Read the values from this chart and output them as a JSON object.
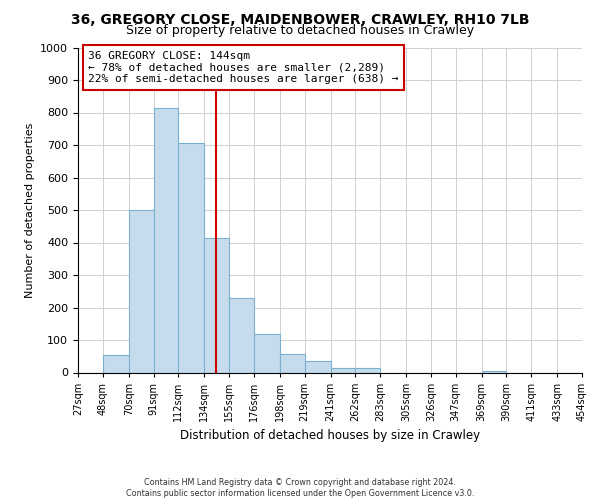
{
  "title": "36, GREGORY CLOSE, MAIDENBOWER, CRAWLEY, RH10 7LB",
  "subtitle": "Size of property relative to detached houses in Crawley",
  "xlabel": "Distribution of detached houses by size in Crawley",
  "ylabel": "Number of detached properties",
  "bin_edges": [
    27,
    48,
    70,
    91,
    112,
    134,
    155,
    176,
    198,
    219,
    241,
    262,
    283,
    305,
    326,
    347,
    369,
    390,
    411,
    433,
    454
  ],
  "bar_heights": [
    0,
    55,
    500,
    815,
    705,
    415,
    228,
    118,
    57,
    35,
    13,
    13,
    0,
    0,
    0,
    0,
    5,
    0,
    0,
    0
  ],
  "bar_color": "#c6dcec",
  "bar_edge_color": "#7ab0d0",
  "vline_x": 144,
  "vline_color": "#cc0000",
  "annotation_line1": "36 GREGORY CLOSE: 144sqm",
  "annotation_line2": "← 78% of detached houses are smaller (2,289)",
  "annotation_line3": "22% of semi-detached houses are larger (638) →",
  "annotation_box_color": "#cc0000",
  "footer_line1": "Contains HM Land Registry data © Crown copyright and database right 2024.",
  "footer_line2": "Contains public sector information licensed under the Open Government Licence v3.0.",
  "tick_labels": [
    "27sqm",
    "48sqm",
    "70sqm",
    "91sqm",
    "112sqm",
    "134sqm",
    "155sqm",
    "176sqm",
    "198sqm",
    "219sqm",
    "241sqm",
    "262sqm",
    "283sqm",
    "305sqm",
    "326sqm",
    "347sqm",
    "369sqm",
    "390sqm",
    "411sqm",
    "433sqm",
    "454sqm"
  ],
  "ylim": [
    0,
    1000
  ],
  "yticks": [
    0,
    100,
    200,
    300,
    400,
    500,
    600,
    700,
    800,
    900,
    1000
  ],
  "background_color": "#ffffff",
  "grid_color": "#d0d0d0"
}
